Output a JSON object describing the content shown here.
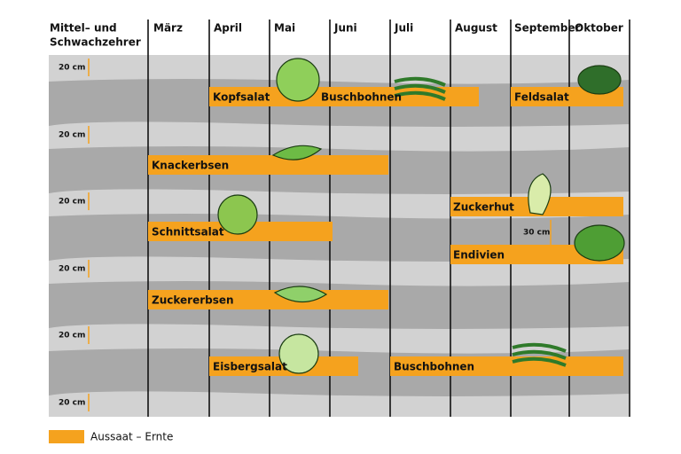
{
  "header": {
    "row_label": [
      "Mittel– und",
      "Schwachzehrer"
    ]
  },
  "months": [
    "März",
    "April",
    "Mai",
    "Juni",
    "Juli",
    "August",
    "September",
    "Oktober"
  ],
  "spacing": [
    "20 cm",
    "20 cm",
    "20 cm",
    "20 cm",
    "20 cm",
    "20 cm",
    "30 cm"
  ],
  "bars": [
    "Kopfsalat",
    "Buschbohnen",
    "Feldsalat",
    "Knackerbsen",
    "Zuckerhut",
    "Schnittsalat",
    "Endivien",
    "Zuckererbsen",
    "Eisbergsalat",
    "Buschbohnen"
  ],
  "legend": {
    "label": "Aussaat – Ernte"
  }
}
